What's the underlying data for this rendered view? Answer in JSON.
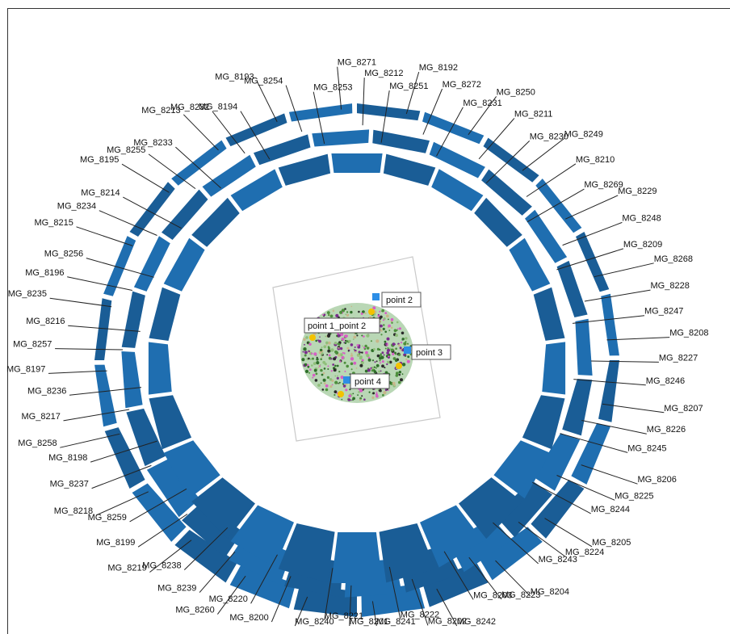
{
  "camera_labels": [
    "MG_8253",
    "MG_8254",
    "MG_8193",
    "MG_8194",
    "MG_8232",
    "MG_8213",
    "MG_8233",
    "MG_8255",
    "MG_8195",
    "MG_8214",
    "MG_8234",
    "MG_8215",
    "MG_8256",
    "MG_8196",
    "MG_8235",
    "MG_8216",
    "MG_8257",
    "MG_8197",
    "MG_8236",
    "MG_8217",
    "MG_8258",
    "MG_8198",
    "MG_8237",
    "MG_8218",
    "MG_8259",
    "MG_8199",
    "MG_8219",
    "MG_8238",
    "MG_8239",
    "MG_8260",
    "MG_8220",
    "MG_8200",
    "MG_8240",
    "MG_8221",
    "MG_8201",
    "MG_8241",
    "MG_8222",
    "MG_8202",
    "MG_8242",
    "MG_8203",
    "MG_8223",
    "MG_8204",
    "MG_8243",
    "MG_8224",
    "MG_8205",
    "MG_8244",
    "MG_8225",
    "MG_8206",
    "MG_8245",
    "MG_8226",
    "MG_8207",
    "MG_8246",
    "MG_8227",
    "MG_8208",
    "MG_8247",
    "MG_8228",
    "MG_8268",
    "MG_8209",
    "MG_8248",
    "MG_8229",
    "MG_8269",
    "MG_8210",
    "MG_8249",
    "MG_8230",
    "MG_8211",
    "MG_8250",
    "MG_8231",
    "MG_8272",
    "MG_8192",
    "MG_8251",
    "MG_8212",
    "MG_8271"
  ],
  "points": [
    {
      "label": "point 2"
    },
    {
      "label": "point 1_point 2"
    },
    {
      "label": "point 3"
    },
    {
      "label": "point 4"
    }
  ],
  "colors": {
    "camera_blue": "#1f6eb0",
    "ring_dark": "#1a5d96",
    "line": "#222222",
    "box_border": "#555555",
    "marker_blue": "#2d8ee6",
    "marker_yellow": "#f3c200"
  }
}
